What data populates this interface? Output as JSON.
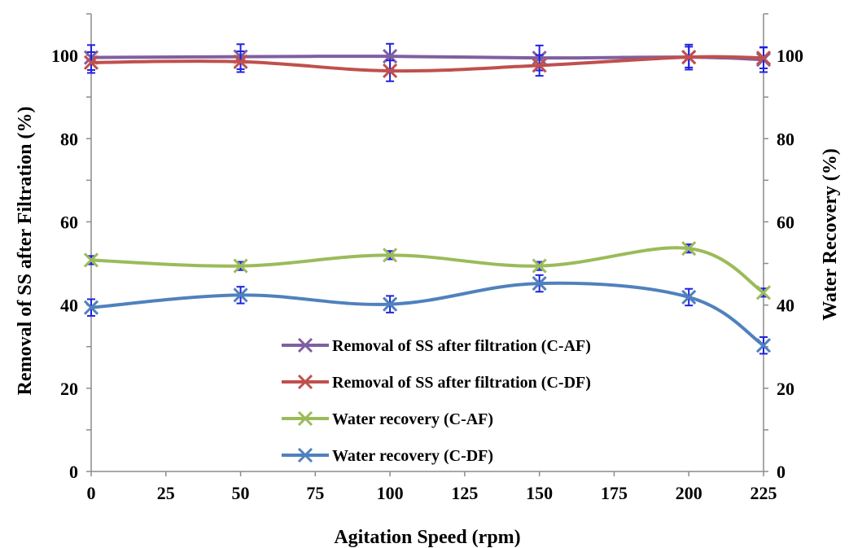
{
  "chart_data": {
    "type": "line",
    "title": "",
    "xlabel": "Agitation Speed (rpm)",
    "ylabel": "Removal of SS after Filtration (%)",
    "y2label": "Water Recovery (%)",
    "x_ticks": [
      "0",
      "25",
      "50",
      "75",
      "100",
      "125",
      "150",
      "175",
      "200",
      "225"
    ],
    "x_tick_values": [
      0,
      25,
      50,
      75,
      100,
      125,
      150,
      175,
      200,
      225
    ],
    "y_ticks": [
      "0",
      "20",
      "40",
      "60",
      "80",
      "100"
    ],
    "y_tick_values": [
      0,
      20,
      40,
      60,
      80,
      100
    ],
    "y2_ticks": [
      "0",
      "20",
      "40",
      "60",
      "80",
      "100"
    ],
    "xlim": [
      0,
      225
    ],
    "ylim": [
      0,
      110
    ],
    "y2lim": [
      0,
      110
    ],
    "grid": false,
    "legend_position": "bottom-right",
    "x": [
      0,
      50,
      100,
      150,
      200,
      225
    ],
    "series": [
      {
        "name": "Removal of SS after filtration (C-AF)",
        "axis": "left",
        "color": "#7F5FA0",
        "values": [
          99.5,
          99.7,
          99.8,
          99.4,
          99.6,
          99.0
        ],
        "error": [
          3.0,
          3.0,
          3.0,
          3.0,
          3.0,
          3.0
        ]
      },
      {
        "name": "Removal of SS after filtration (C-DF)",
        "axis": "left",
        "color": "#C0504D",
        "values": [
          98.3,
          98.5,
          96.3,
          97.6,
          99.6,
          99.4
        ],
        "error": [
          2.5,
          2.5,
          2.5,
          2.5,
          2.5,
          2.5
        ]
      },
      {
        "name": "Water recovery (C-AF)",
        "axis": "right",
        "color": "#9BBB59",
        "values": [
          50.8,
          49.4,
          52.0,
          49.4,
          53.6,
          43.0
        ],
        "error": [
          1.0,
          1.0,
          1.0,
          1.0,
          1.0,
          1.0
        ]
      },
      {
        "name": "Water recovery (C-DF)",
        "axis": "right",
        "color": "#4F81BD",
        "values": [
          39.4,
          42.4,
          40.2,
          45.2,
          41.9,
          30.3
        ],
        "error": [
          2.0,
          2.0,
          2.0,
          2.0,
          2.0,
          2.0
        ]
      }
    ]
  },
  "colors": {
    "axis": "#8C8C8C",
    "error_bar": "#2020E0"
  }
}
